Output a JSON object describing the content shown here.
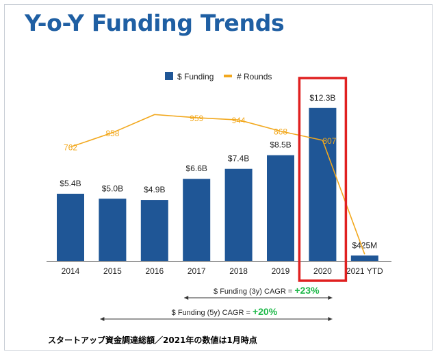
{
  "title": "Y-o-Y Funding Trends",
  "footnote": "スタートアップ資金調達総額／2021年の数値は1月時点",
  "colors": {
    "title": "#1f5fa3",
    "bar": "#1f5696",
    "line": "#f2a81d",
    "highlight": "#e02020",
    "cagr": "#1fb84a"
  },
  "cagr": [
    {
      "label": "$ Funding (3y) CAGR =",
      "value": "+23%",
      "from": "2017",
      "to": "2020"
    },
    {
      "label": "$ Funding (5y) CAGR =",
      "value": "+20%",
      "from": "2015",
      "to": "2020"
    }
  ],
  "chart_data": {
    "type": "bar",
    "categories": [
      "2014",
      "2015",
      "2016",
      "2017",
      "2018",
      "2019",
      "2020",
      "2021 YTD"
    ],
    "series": [
      {
        "name": "$ Funding",
        "type": "bar",
        "values": [
          5.4,
          5.0,
          4.9,
          6.6,
          7.4,
          8.5,
          12.3,
          0.425
        ],
        "labels": [
          "$5.4B",
          "$5.0B",
          "$4.9B",
          "$6.6B",
          "$7.4B",
          "$8.5B",
          "$12.3B",
          "$425M"
        ]
      },
      {
        "name": "# Rounds",
        "type": "line",
        "values": [
          762,
          858,
          980,
          959,
          944,
          868,
          807,
          40
        ],
        "labels": [
          "762",
          "858",
          "",
          "959",
          "944",
          "868",
          "807",
          ""
        ]
      }
    ],
    "highlight_category": "2020",
    "legend_position": "top-center",
    "grid": false
  }
}
